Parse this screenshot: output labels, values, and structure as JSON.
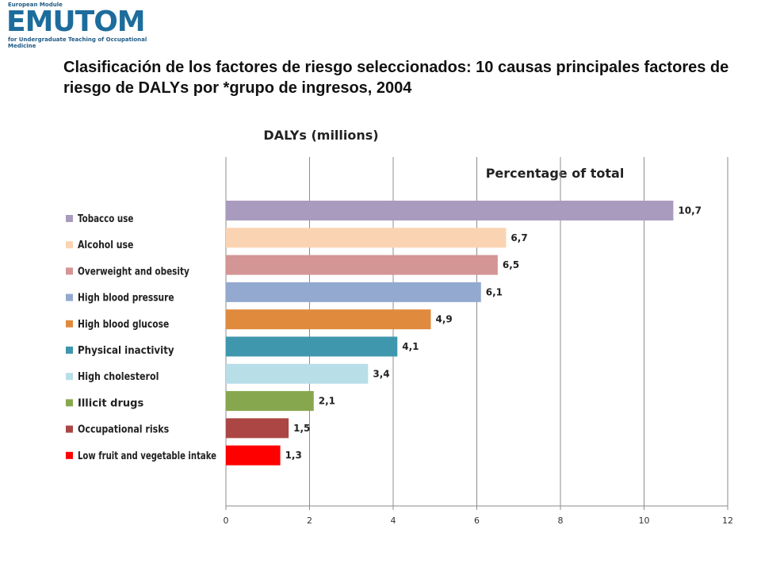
{
  "logo": {
    "top_text": "European Module",
    "name": "EMUTOM",
    "subtitle": "for Undergraduate Teaching of Occupational Medicine"
  },
  "page_title": "Clasificación de los factores de riesgo seleccionados: 10 causas principales factores de riesgo de DALYs por *grupo de ingresos, 2004",
  "chart_data": {
    "type": "bar",
    "orientation": "horizontal",
    "title": "DALYs (millions)",
    "subtitle": "Percentage of total",
    "categories": [
      "Tobacco use",
      "Alcohol use",
      "Overweight and obesity",
      "High blood pressure",
      "High blood glucose",
      "Physical inactivity",
      "High cholesterol",
      "Illicit drugs",
      "Occupational risks",
      "Low fruit and vegetable intake"
    ],
    "values": [
      10.7,
      6.7,
      6.5,
      6.1,
      4.9,
      4.1,
      3.4,
      2.1,
      1.5,
      1.3
    ],
    "data_labels": [
      "10,7",
      "6,7",
      "6,5",
      "6,1",
      "4,9",
      "4,1",
      "3,4",
      "2,1",
      "1,5",
      "1,3"
    ],
    "colors": [
      "#a99bbd",
      "#fad4b2",
      "#d49595",
      "#93a9cf",
      "#e08a3e",
      "#3f97ad",
      "#b8dee8",
      "#87a74e",
      "#ab4644",
      "#ff0000"
    ],
    "xlim": [
      0,
      12
    ],
    "xticks": [
      0,
      2,
      4,
      6,
      8,
      10,
      12
    ],
    "grid": true,
    "legend_position": "left"
  }
}
